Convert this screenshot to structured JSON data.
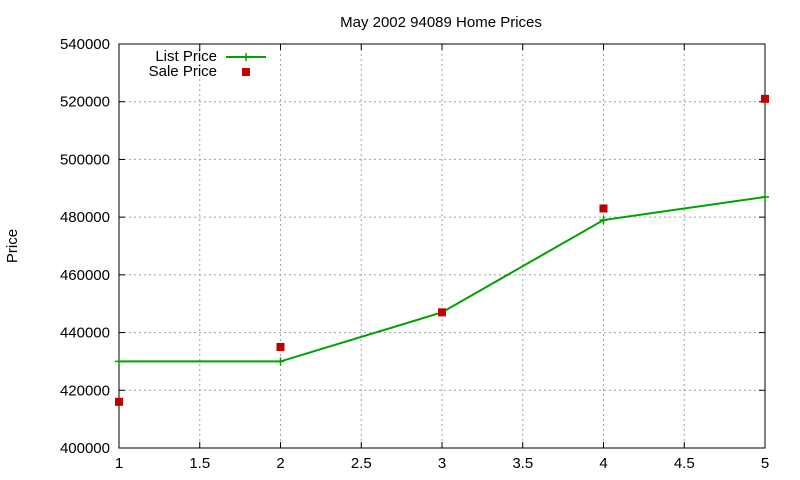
{
  "chart_data": {
    "type": "line",
    "title": "May 2002 94089 Home Prices",
    "xlabel": "",
    "ylabel": "Price",
    "x": [
      1,
      2,
      3,
      4,
      5
    ],
    "xlim": [
      1,
      5
    ],
    "ylim": [
      400000,
      540000
    ],
    "x_ticks": [
      "1",
      "1.5",
      "2",
      "2.5",
      "3",
      "3.5",
      "4",
      "4.5",
      "5"
    ],
    "y_ticks": [
      "400000",
      "420000",
      "440000",
      "460000",
      "480000",
      "500000",
      "520000",
      "540000"
    ],
    "grid": true,
    "legend_position": "top-left",
    "series": [
      {
        "name": "List Price",
        "style": "line+cross",
        "color": "#00a000",
        "values": [
          430000,
          430000,
          447000,
          479000,
          487000
        ]
      },
      {
        "name": "Sale Price",
        "style": "square-points",
        "color": "#c00000",
        "values": [
          416000,
          435000,
          447000,
          483000,
          521000
        ]
      }
    ]
  }
}
